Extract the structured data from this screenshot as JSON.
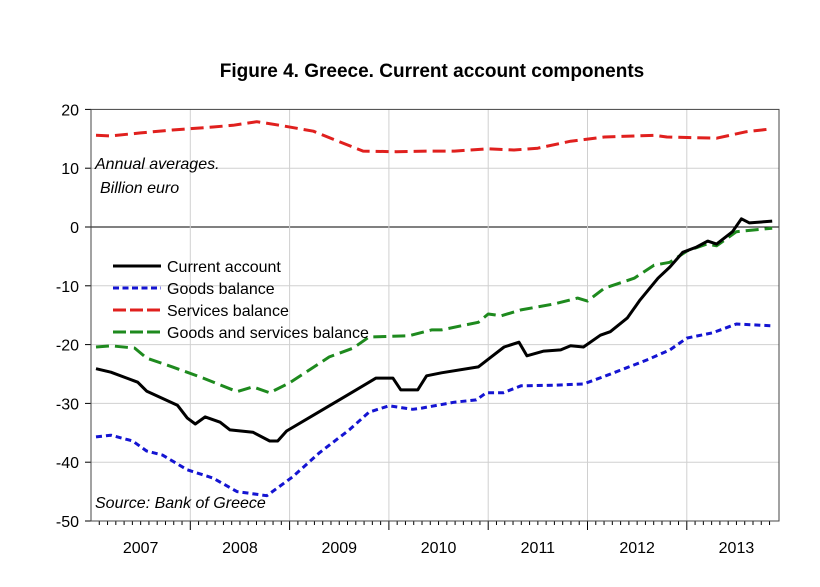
{
  "chart_data": {
    "type": "line",
    "title": "Figure 4. Greece. Current account components",
    "annotations": [
      "Annual averages.",
      "Billion euro",
      "Source: Bank of Greece"
    ],
    "xlabel": "",
    "ylabel": "",
    "xlim": [
      2007,
      2014
    ],
    "ylim": [
      -50,
      20
    ],
    "yticks": [
      20,
      10,
      0,
      -10,
      -20,
      -30,
      -40,
      -50
    ],
    "xtick_labels": [
      "2007",
      "2008",
      "2009",
      "2010",
      "2011",
      "2012",
      "2013"
    ],
    "grid": true,
    "legend_position": "center-left",
    "series": [
      {
        "name": "Current account",
        "color": "#000000",
        "style": "solid",
        "x": [
          2007.05,
          2007.2,
          2007.47,
          2007.56,
          2007.87,
          2007.97,
          2008.05,
          2008.15,
          2008.3,
          2008.4,
          2008.63,
          2008.8,
          2008.88,
          2008.97,
          2009.24,
          2009.57,
          2009.87,
          2010.04,
          2010.12,
          2010.29,
          2010.38,
          2010.53,
          2010.9,
          2011.03,
          2011.16,
          2011.31,
          2011.39,
          2011.56,
          2011.73,
          2011.83,
          2011.96,
          2012.13,
          2012.23,
          2012.4,
          2012.53,
          2012.71,
          2012.83,
          2012.96,
          2013.1,
          2013.21,
          2013.3,
          2013.46,
          2013.55,
          2013.63,
          2013.86
        ],
        "y": [
          -24.1,
          -24.7,
          -26.4,
          -27.9,
          -30.3,
          -32.5,
          -33.5,
          -32.3,
          -33.2,
          -34.5,
          -34.9,
          -36.4,
          -36.4,
          -34.7,
          -32,
          -28.7,
          -25.7,
          -25.7,
          -27.7,
          -27.7,
          -25.3,
          -24.8,
          -23.8,
          -22.1,
          -20.4,
          -19.6,
          -21.9,
          -21.1,
          -20.9,
          -20.2,
          -20.4,
          -18.4,
          -17.8,
          -15.5,
          -12.4,
          -8.7,
          -6.8,
          -4.3,
          -3.4,
          -2.4,
          -2.9,
          -0.8,
          1.4,
          0.7,
          1.0
        ]
      },
      {
        "name": "Goods balance",
        "color": "#1414d2",
        "style": "dotted",
        "x": [
          2007.05,
          2007.2,
          2007.42,
          2007.56,
          2007.72,
          2007.97,
          2008.23,
          2008.47,
          2008.77,
          2009.03,
          2009.3,
          2009.6,
          2009.8,
          2010.0,
          2010.24,
          2010.33,
          2010.66,
          2010.88,
          2010.98,
          2011.15,
          2011.33,
          2011.66,
          2011.96,
          2012.2,
          2012.6,
          2012.83,
          2013.0,
          2013.26,
          2013.5,
          2013.86
        ],
        "y": [
          -35.7,
          -35.4,
          -36.4,
          -38.1,
          -38.8,
          -41.3,
          -42.7,
          -45,
          -45.7,
          -42.5,
          -38.4,
          -34.5,
          -31.5,
          -30.4,
          -31,
          -30.8,
          -29.8,
          -29.4,
          -28.2,
          -28.2,
          -27,
          -26.9,
          -26.7,
          -25.2,
          -22.6,
          -20.9,
          -18.9,
          -18.0,
          -16.5,
          -16.8
        ]
      },
      {
        "name": "Services balance",
        "color": "#e0201e",
        "style": "dashed",
        "x": [
          2007.05,
          2007.2,
          2007.5,
          2007.82,
          2008.23,
          2008.43,
          2008.67,
          2008.9,
          2009.24,
          2009.5,
          2009.74,
          2010.07,
          2010.43,
          2010.66,
          2011.0,
          2011.26,
          2011.5,
          2011.83,
          2012.17,
          2012.67,
          2012.8,
          2013.3,
          2013.6,
          2013.86
        ],
        "y": [
          15.6,
          15.5,
          16,
          16.5,
          17,
          17.3,
          17.9,
          17.3,
          16.3,
          14.5,
          12.9,
          12.8,
          12.9,
          12.9,
          13.3,
          13.1,
          13.4,
          14.6,
          15.3,
          15.6,
          15.3,
          15.1,
          16.2,
          16.7
        ]
      },
      {
        "name": "Goods and services balance",
        "color": "#1e8a1e",
        "style": "dashed",
        "x": [
          2007.05,
          2007.2,
          2007.44,
          2007.56,
          2007.82,
          2008.13,
          2008.47,
          2008.63,
          2008.8,
          2009.0,
          2009.4,
          2009.64,
          2009.8,
          2010.2,
          2010.43,
          2010.53,
          2010.9,
          2011.0,
          2011.13,
          2011.33,
          2011.66,
          2011.9,
          2012.0,
          2012.17,
          2012.47,
          2012.67,
          2012.83,
          2013.0,
          2013.2,
          2013.3,
          2013.5,
          2013.86
        ],
        "y": [
          -20.4,
          -20.2,
          -20.6,
          -22.3,
          -23.8,
          -25.7,
          -28,
          -27.2,
          -28.2,
          -26.5,
          -22.1,
          -20.6,
          -18.7,
          -18.5,
          -17.5,
          -17.5,
          -16.2,
          -14.8,
          -15.1,
          -14.1,
          -13.1,
          -12.1,
          -12.6,
          -10.4,
          -8.7,
          -6.5,
          -6,
          -4.1,
          -2.9,
          -3.2,
          -0.8,
          -0.2
        ]
      }
    ]
  }
}
